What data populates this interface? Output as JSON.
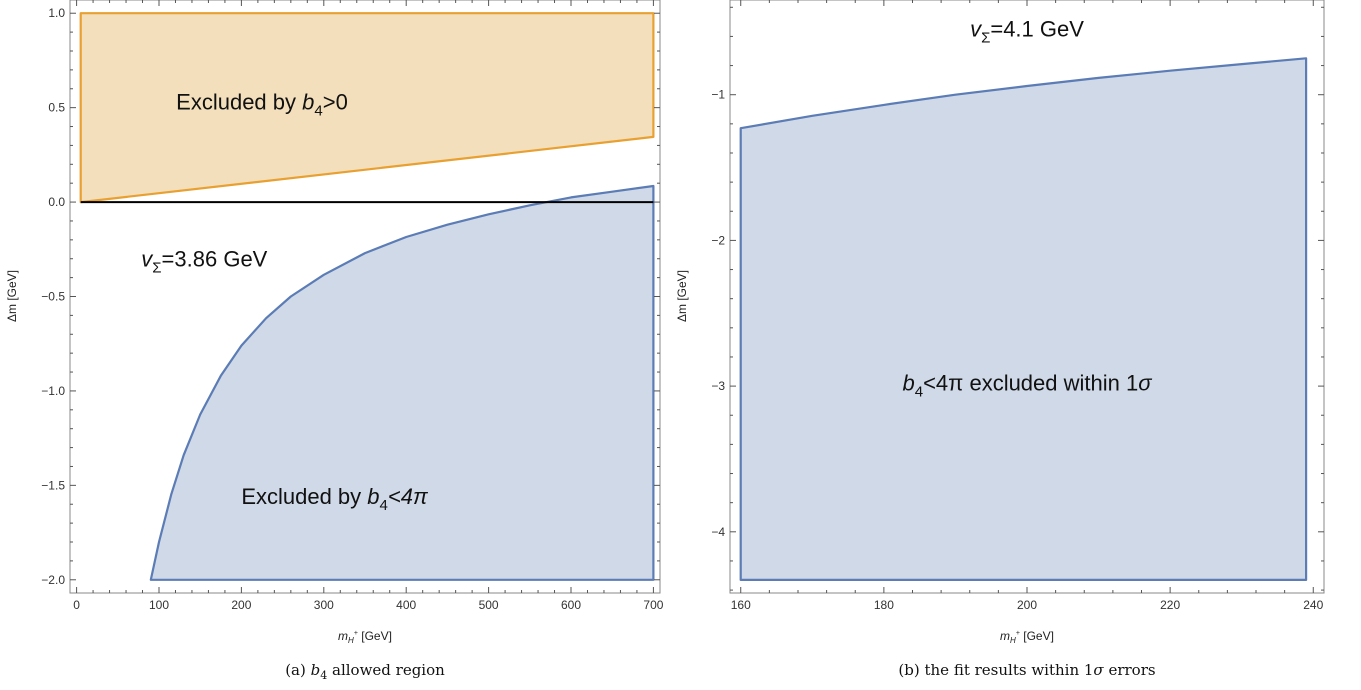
{
  "chart_data": [
    {
      "type": "area",
      "caption": "(a) b4 allowed region",
      "caption_parts": [
        "(a) ",
        "b",
        "4",
        " allowed region"
      ],
      "xlabel_parts": [
        "m",
        "H",
        "+",
        " [GeV]"
      ],
      "ylabel": "Δm [GeV]",
      "xlim": [
        -8,
        708
      ],
      "ylim": [
        -2.07,
        1.07
      ],
      "xticks": [
        0,
        100,
        200,
        300,
        400,
        500,
        600,
        700
      ],
      "yticks": [
        1.0,
        0.5,
        0.0,
        -0.5,
        -1.0,
        -1.5,
        -2.0
      ],
      "ytick_labels": [
        "1.0",
        "0.5",
        "0.0",
        "−0.5",
        "−1.0",
        "−1.5",
        "−2.0"
      ],
      "colors": {
        "orange": "#E8A030",
        "orange_fill": "#F3DFBC",
        "blue": "#5B7CB5",
        "blue_fill": "#CFD9E8"
      },
      "series": [
        {
          "legend": "Excluded by b4>0",
          "color": "orange",
          "x": [
            5,
            5,
            700,
            700
          ],
          "y": [
            0.0,
            1.0,
            1.0,
            0.345
          ]
        },
        {
          "legend": "Excluded by b4<4π",
          "color": "blue",
          "x": [
            90,
            100,
            115,
            130,
            150,
            175,
            200,
            230,
            260,
            300,
            350,
            400,
            450,
            500,
            550,
            600,
            650,
            700,
            700
          ],
          "y": [
            -2.0,
            -1.8,
            -1.545,
            -1.34,
            -1.125,
            -0.92,
            -0.76,
            -0.615,
            -0.5,
            -0.385,
            -0.27,
            -0.185,
            -0.12,
            -0.065,
            -0.017,
            0.025,
            0.055,
            0.085,
            -2.0
          ]
        }
      ],
      "hline": 0.0,
      "annotations": [
        {
          "id": "a0",
          "x": 225,
          "y": 0.49,
          "parts": [
            "Excluded by ",
            "b",
            "4",
            ">0"
          ]
        },
        {
          "id": "a1",
          "x": 155,
          "y": -0.34,
          "parts": [
            "v",
            "Σ",
            "=3.86 GeV"
          ]
        },
        {
          "id": "a2",
          "x": 313,
          "y": -1.6,
          "parts": [
            "Excluded by ",
            "b",
            "4",
            "<4π"
          ]
        }
      ]
    },
    {
      "type": "area",
      "caption": "(b) the fit results within 1σ errors",
      "caption_parts": [
        "(b) the fit results within 1",
        "σ",
        " errors"
      ],
      "xlabel_parts": [
        "m",
        "H",
        "+",
        " [GeV]"
      ],
      "ylabel": "Δm [GeV]",
      "xlim": [
        158.5,
        241.5
      ],
      "ylim": [
        -4.42,
        -0.35
      ],
      "xticks": [
        160,
        180,
        200,
        220,
        240
      ],
      "yticks": [
        -1,
        -2,
        -3,
        -4
      ],
      "ytick_labels": [
        "−1",
        "−2",
        "−3",
        "−4"
      ],
      "colors": {
        "blue": "#5B7CB5",
        "blue_fill": "#CFD9E8"
      },
      "series": [
        {
          "legend": "b4<4π excluded within 1σ",
          "color": "blue",
          "x": [
            160,
            160,
            170,
            180,
            190,
            200,
            210,
            220,
            230,
            239,
            239
          ],
          "y": [
            -4.33,
            -1.23,
            -1.145,
            -1.07,
            -1.0,
            -0.94,
            -0.885,
            -0.835,
            -0.79,
            -0.75,
            -4.33
          ]
        }
      ],
      "annotations": [
        {
          "id": "b0",
          "x": 200,
          "y": -0.6,
          "parts": [
            "v",
            "Σ",
            "=4.1 GeV"
          ]
        },
        {
          "id": "b1",
          "x": 200,
          "y": -3.03,
          "parts": [
            "b",
            "4",
            "<4π excluded within 1",
            "σ"
          ]
        }
      ]
    }
  ]
}
